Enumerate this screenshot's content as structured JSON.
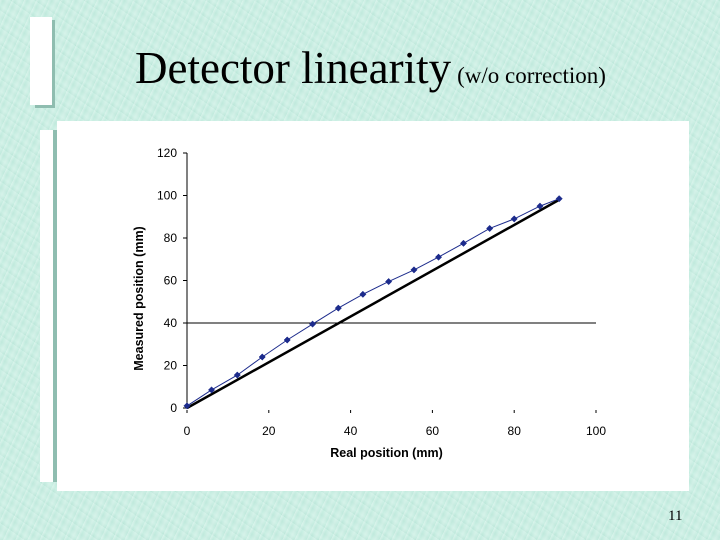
{
  "slide": {
    "title_main": "Detector linearity",
    "title_sub": "(w/o correction)",
    "page_number": "11"
  },
  "chart_data": {
    "type": "scatter",
    "title": "",
    "xlabel": "Real position (mm)",
    "ylabel": "Measured position (mm)",
    "xlim": [
      0,
      100
    ],
    "ylim": [
      0,
      120
    ],
    "x_ticks": [
      0,
      20,
      40,
      60,
      80,
      100
    ],
    "y_ticks": [
      0,
      20,
      40,
      60,
      80,
      100,
      120
    ],
    "x_tick_labels": [
      "0",
      "20",
      "40",
      "60",
      "80",
      "100"
    ],
    "y_tick_labels": [
      "0",
      "20",
      "40",
      "60",
      "80",
      "100",
      "120"
    ],
    "grid": false,
    "legend": "none",
    "series": [
      {
        "style": "line+markers",
        "color": "#1c2b8c",
        "x": [
          0,
          6,
          12.3,
          18.4,
          24.5,
          30.7,
          37,
          43,
          49.3,
          55.5,
          61.5,
          67.6,
          74,
          80,
          86.3,
          91
        ],
        "y": [
          1,
          8.5,
          15.5,
          24,
          32,
          39.5,
          47,
          53.5,
          59.5,
          65,
          71,
          77.5,
          84.5,
          89,
          95,
          98.5
        ]
      },
      {
        "style": "line",
        "color": "#000000",
        "x": [
          0,
          91
        ],
        "y": [
          0,
          98
        ]
      }
    ],
    "reference_line": {
      "y": 40,
      "x_range": [
        0,
        100
      ]
    }
  }
}
